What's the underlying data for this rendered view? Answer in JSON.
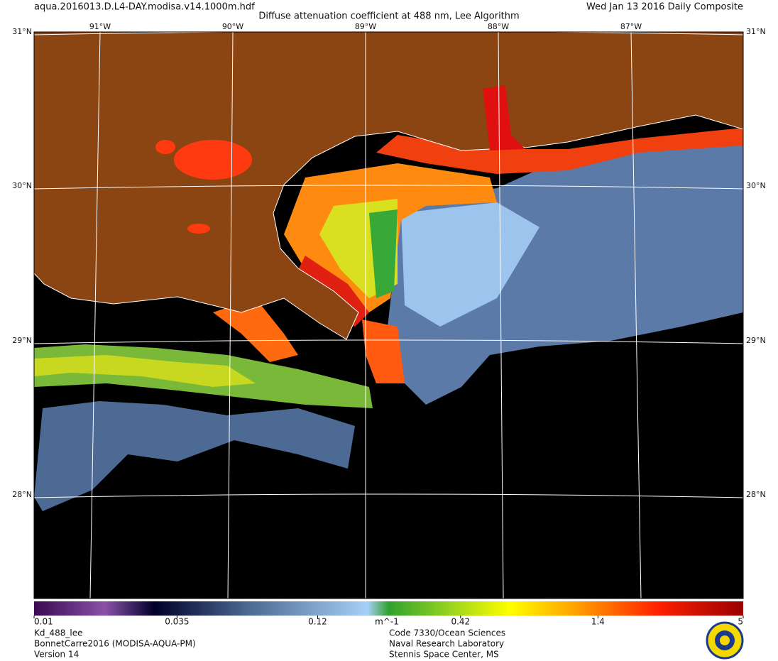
{
  "header": {
    "file": "aqua.2016013.D.L4-DAY.modisa.v14.1000m.hdf",
    "title": "Diffuse attenuation coefficient at 488 nm, Lee Algorithm",
    "date": "Wed Jan 13 2016 Daily Composite"
  },
  "map": {
    "longitudes": [
      "91°W",
      "90°W",
      "89°W",
      "88°W",
      "87°W"
    ],
    "latitudes": [
      "31°N",
      "30°N",
      "29°N",
      "28°N"
    ]
  },
  "colorbar": {
    "range": [
      0.01,
      5
    ],
    "log": true,
    "ticks": [
      0.01,
      0.035,
      0.12,
      0.42,
      1.4,
      5
    ],
    "unit": "m^-1"
  },
  "footer": {
    "left": [
      "Kd_488_lee",
      "BonnetCarre2016 (MODISA-AQUA-PM)",
      "Version 14"
    ],
    "right": [
      "Code 7330/Ocean Sciences",
      "Naval Research Laboratory",
      "Stennis Space Center, MS"
    ]
  }
}
